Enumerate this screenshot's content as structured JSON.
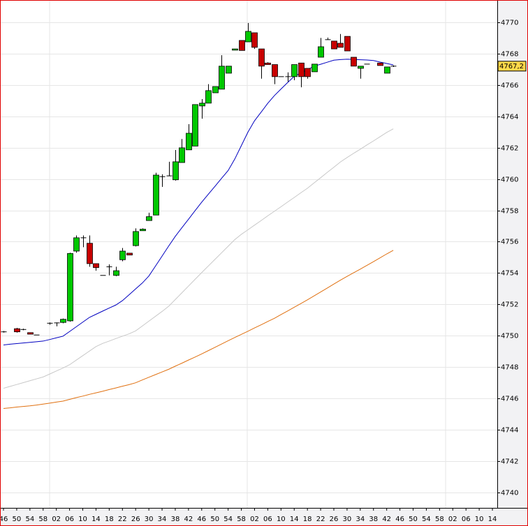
{
  "chart_data": {
    "type": "candlestick",
    "categories": [
      "46",
      null,
      "50",
      null,
      "54",
      null,
      "58",
      null,
      "02",
      null,
      "06",
      null,
      "10",
      null,
      "14",
      null,
      "18",
      null,
      "22",
      null,
      "26",
      null,
      "30",
      null,
      "34",
      null,
      "38",
      null,
      "42",
      null,
      "46",
      null,
      "50",
      null,
      "54",
      null,
      "58",
      null,
      "02",
      null,
      "06",
      null,
      "10",
      null,
      "14",
      null,
      "18",
      null,
      "22",
      null,
      "26",
      null,
      "30",
      null,
      "34",
      null,
      "38",
      null,
      "42",
      null,
      "46",
      null,
      "50",
      null,
      "54",
      null,
      "58",
      null,
      "02",
      null,
      "06",
      null,
      "10",
      null,
      "14"
    ],
    "open": [
      4750.25,
      null,
      4750.45,
      4750.4,
      4750.2,
      4750.05,
      null,
      4750.8,
      4750.82,
      4750.85,
      4750.95,
      4755.4,
      4756.25,
      4755.9,
      4754.6,
      4753.85,
      4754.4,
      4753.85,
      4754.85,
      4755.27,
      4755.75,
      4756.7,
      4757.35,
      4757.7,
      4760.15,
      4760.2,
      4759.95,
      4761.05,
      4761.86,
      4762.1,
      4764.66,
      4764.84,
      4765.5,
      4765.73,
      4766.75,
      4768.22,
      4768.84,
      4768.75,
      4769.33,
      4768.3,
      4767.4,
      4767.3,
      4766.53,
      4766.53,
      4766.53,
      4767.4,
      4767.06,
      4766.84,
      4767.77,
      4768.89,
      4768.8,
      4768.66,
      4769.1,
      4767.77,
      4767.06,
      4767.33,
      null,
      4767.4,
      4766.75,
      4767.2,
      null,
      null,
      null,
      null,
      null,
      null,
      null,
      null,
      null,
      null,
      null,
      null,
      null,
      null,
      null
    ],
    "high": [
      4750.3,
      null,
      4750.5,
      4750.45,
      4750.2,
      4750.05,
      null,
      4750.85,
      4750.85,
      4751.1,
      4755.3,
      4756.4,
      4756.4,
      4756.4,
      4754.6,
      4753.85,
      4754.55,
      4754.4,
      4755.6,
      4755.27,
      4756.85,
      4756.85,
      4757.85,
      4760.4,
      4760.3,
      4761.1,
      4761.85,
      4762.55,
      4763.5,
      4764.75,
      4765.1,
      4766.05,
      4765.9,
      4767.9,
      4767.2,
      4768.3,
      4768.84,
      4769.95,
      4769.33,
      4768.3,
      4767.45,
      4767.3,
      4766.53,
      4766.8,
      4767.3,
      4767.4,
      4767.06,
      4767.33,
      4769.0,
      4769.02,
      4768.8,
      4769.25,
      4769.1,
      4767.77,
      4767.2,
      4767.33,
      null,
      4767.4,
      4767.15,
      4767.25,
      null,
      null,
      null,
      null,
      null,
      null,
      null,
      null,
      null,
      null,
      null,
      null,
      null,
      null,
      null
    ],
    "low": [
      4750.2,
      null,
      4750.2,
      4750.35,
      4750.1,
      4750.05,
      null,
      4750.7,
      4750.6,
      4750.8,
      4750.9,
      4755.3,
      4755.65,
      4754.4,
      4754.15,
      4753.85,
      4753.85,
      4753.8,
      4754.75,
      4755.15,
      4755.7,
      4756.7,
      4757.35,
      4757.7,
      4759.5,
      4760.2,
      4759.9,
      4761.05,
      4761.86,
      4762.1,
      4763.85,
      4764.84,
      4765.5,
      4765.73,
      4766.75,
      4768.22,
      4768.2,
      4768.75,
      4768.3,
      4766.4,
      4767.3,
      4766.05,
      4766.53,
      4766.2,
      4766.3,
      4765.85,
      4766.4,
      4766.84,
      4767.77,
      4768.89,
      4768.3,
      4768.4,
      4768.17,
      4767.2,
      4766.4,
      4767.33,
      null,
      4767.24,
      4766.75,
      4767.15,
      null,
      null,
      null,
      null,
      null,
      null,
      null,
      null,
      null,
      null,
      null,
      null,
      null,
      null,
      null
    ],
    "close": [
      4750.25,
      null,
      4750.25,
      4750.4,
      4750.1,
      4750.05,
      null,
      4750.8,
      4750.82,
      4751.05,
      4755.25,
      4756.25,
      4756.25,
      4754.6,
      4754.35,
      4753.85,
      4754.4,
      4754.15,
      4755.4,
      4755.15,
      4756.65,
      4756.8,
      4757.6,
      4760.25,
      4760.15,
      4760.2,
      4761.1,
      4761.99,
      4762.92,
      4764.75,
      4764.84,
      4765.64,
      4765.9,
      4767.2,
      4767.2,
      4768.3,
      4768.2,
      4769.42,
      4768.4,
      4767.2,
      4767.3,
      4766.53,
      4766.53,
      4766.53,
      4767.3,
      4766.53,
      4766.53,
      4767.33,
      4768.44,
      4768.89,
      4768.3,
      4768.4,
      4768.17,
      4767.2,
      4767.2,
      4767.33,
      null,
      4767.24,
      4767.15,
      4767.2,
      null,
      null,
      null,
      null,
      null,
      null,
      null,
      null,
      null,
      null,
      null,
      null,
      null,
      null,
      null
    ],
    "up_color": "#00c800",
    "down_color": "#c80000",
    "lines": [
      {
        "color": "#0000c0",
        "values": [
          4749.41,
          4749.46,
          4749.5,
          4749.54,
          4749.58,
          4749.62,
          4749.66,
          4749.76,
          4749.87,
          4749.97,
          4750.27,
          4750.57,
          4750.87,
          4751.17,
          4751.37,
          4751.57,
          4751.77,
          4751.96,
          4752.24,
          4752.61,
          4752.99,
          4753.36,
          4753.81,
          4754.44,
          4755.08,
          4755.72,
          4756.34,
          4756.89,
          4757.43,
          4757.98,
          4758.52,
          4759.03,
          4759.53,
          4760.04,
          4760.54,
          4761.27,
          4762.13,
          4762.99,
          4763.72,
          4764.27,
          4764.83,
          4765.32,
          4765.74,
          4766.15,
          4766.55,
          4766.76,
          4766.98,
          4767.2,
          4767.32,
          4767.45,
          4767.58,
          4767.62,
          4767.64,
          4767.63,
          4767.61,
          4767.59,
          4767.56,
          4767.46,
          4767.37,
          4767.28,
          null,
          null,
          null,
          null,
          null,
          null,
          null,
          null,
          null,
          null,
          null,
          null,
          null,
          null,
          null
        ]
      },
      {
        "color": "#c8c8c8",
        "values": [
          4746.65,
          4746.77,
          4746.89,
          4747.01,
          4747.13,
          4747.25,
          4747.37,
          4747.56,
          4747.75,
          4747.94,
          4748.15,
          4748.44,
          4748.73,
          4749.02,
          4749.31,
          4749.51,
          4749.66,
          4749.82,
          4749.97,
          4750.12,
          4750.31,
          4750.62,
          4750.93,
          4751.24,
          4751.55,
          4751.88,
          4752.31,
          4752.74,
          4753.17,
          4753.6,
          4754.03,
          4754.45,
          4754.87,
          4755.29,
          4755.71,
          4756.13,
          4756.47,
          4756.76,
          4757.06,
          4757.35,
          4757.65,
          4757.94,
          4758.23,
          4758.53,
          4758.82,
          4759.12,
          4759.41,
          4759.75,
          4760.08,
          4760.42,
          4760.75,
          4761.09,
          4761.37,
          4761.64,
          4761.9,
          4762.17,
          4762.43,
          4762.7,
          4762.97,
          4763.2,
          null,
          null,
          null,
          null,
          null,
          null,
          null,
          null,
          null,
          null,
          null,
          null,
          null,
          null,
          null
        ]
      },
      {
        "color": "#e07010",
        "values": [
          4745.36,
          4745.4,
          4745.45,
          4745.49,
          4745.53,
          4745.58,
          4745.64,
          4745.7,
          4745.77,
          4745.83,
          4745.94,
          4746.05,
          4746.15,
          4746.26,
          4746.36,
          4746.46,
          4746.57,
          4746.67,
          4746.78,
          4746.88,
          4747.0,
          4747.18,
          4747.35,
          4747.52,
          4747.69,
          4747.86,
          4748.06,
          4748.25,
          4748.45,
          4748.64,
          4748.84,
          4749.05,
          4749.26,
          4749.47,
          4749.68,
          4749.89,
          4750.09,
          4750.29,
          4750.5,
          4750.7,
          4750.91,
          4751.11,
          4751.35,
          4751.58,
          4751.82,
          4752.05,
          4752.29,
          4752.54,
          4752.79,
          4753.04,
          4753.3,
          4753.55,
          4753.79,
          4754.02,
          4754.25,
          4754.49,
          4754.73,
          4754.97,
          4755.22,
          4755.45,
          null,
          null,
          null,
          null,
          null,
          null,
          null,
          null,
          null,
          null,
          null,
          null,
          null,
          null,
          null
        ]
      }
    ],
    "ylim": [
      4739.02,
      4771.42
    ],
    "yticks": [
      4740,
      4742,
      4744,
      4746,
      4748,
      4750,
      4752,
      4754,
      4756,
      4758,
      4760,
      4762,
      4764,
      4766,
      4768,
      4770
    ],
    "grid": true,
    "last_price": {
      "value": 4767.2,
      "label": "4767,2"
    }
  }
}
